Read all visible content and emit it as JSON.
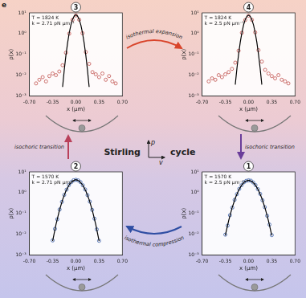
{
  "panel_label": "e",
  "center_label": "Stirling cycle",
  "axis_labels": {
    "y": "p",
    "x": "v"
  },
  "transitions": [
    {
      "label": "isothermal expansion",
      "color": "#d9452b"
    },
    {
      "label": "isochoric transition",
      "color": "#6a3d9a"
    },
    {
      "label": "isothermal compression",
      "color": "#2f4ea3"
    },
    {
      "label": "isochoric transition",
      "color": "#b9405a"
    }
  ],
  "chart_data": [
    {
      "type": "scatter",
      "title": "3",
      "annotations": [
        "T = 1824 K",
        "k = 2.71 pN µm⁻¹"
      ],
      "x_label": "x (µm)",
      "y_label": "ρ(x)",
      "log": "y",
      "grid": false,
      "xlim": [
        -0.7,
        0.7
      ],
      "xticks": [
        {
          "value": -0.7,
          "label": "-0.70"
        },
        {
          "value": -0.35,
          "label": "-0.35"
        },
        {
          "value": 0,
          "label": "0.00"
        },
        {
          "value": 0.35,
          "label": "0.35"
        },
        {
          "value": 0.7,
          "label": "0.70"
        }
      ],
      "ylim": [
        0.001,
        10
      ],
      "yticks": [
        {
          "value": 10,
          "label": "10¹"
        },
        {
          "value": 1,
          "label": "10⁰"
        },
        {
          "value": 0.1,
          "label": "10⁻¹"
        },
        {
          "value": 0.01,
          "label": "10⁻²"
        },
        {
          "value": 0.001,
          "label": "10⁻³"
        }
      ],
      "series": [
        {
          "type": "scatter",
          "color": "#c0504d",
          "marker": "open circle",
          "x": [
            -0.6,
            -0.55,
            -0.5,
            -0.45,
            -0.4,
            -0.35,
            -0.3,
            -0.25,
            -0.2,
            -0.15,
            -0.1,
            -0.05,
            0,
            0.05,
            0.1,
            0.15,
            0.2,
            0.25,
            0.3,
            0.35,
            0.4,
            0.45,
            0.5,
            0.55,
            0.6
          ],
          "values": [
            0.004,
            0.006,
            0.008,
            0.005,
            0.009,
            0.012,
            0.01,
            0.015,
            0.03,
            0.12,
            1.0,
            4.6,
            7.5,
            4.7,
            1.05,
            0.13,
            0.035,
            0.014,
            0.011,
            0.008,
            0.012,
            0.006,
            0.009,
            0.005,
            0.004
          ]
        },
        {
          "type": "line",
          "color": "#000000",
          "marker": "none",
          "line_style": "solid",
          "x": [
            -0.2,
            -0.175,
            -0.15,
            -0.125,
            -0.1,
            -0.075,
            -0.05,
            -0.025,
            0,
            0.025,
            0.05,
            0.075,
            0.1,
            0.125,
            0.15,
            0.175,
            0.2
          ],
          "values": [
            0.0027,
            0.0175,
            0.0888,
            0.35,
            1.08,
            2.59,
            4.84,
            7.04,
            7.98,
            7.04,
            4.84,
            2.59,
            1.08,
            0.35,
            0.0888,
            0.0175,
            0.0027
          ]
        }
      ]
    },
    {
      "type": "scatter",
      "title": "4",
      "annotations": [
        "T = 1824 K",
        "k = 2.5 pN µm⁻¹"
      ],
      "x_label": "x (µm)",
      "y_label": "ρ(x)",
      "log": "y",
      "grid": false,
      "xlim": [
        -0.7,
        0.7
      ],
      "xticks": [
        {
          "value": -0.7,
          "label": "-0.70"
        },
        {
          "value": -0.35,
          "label": "-0.35"
        },
        {
          "value": 0,
          "label": "0.00"
        },
        {
          "value": 0.35,
          "label": "0.35"
        },
        {
          "value": 0.7,
          "label": "0.70"
        }
      ],
      "ylim": [
        0.001,
        10
      ],
      "yticks": [
        {
          "value": 10,
          "label": "10¹"
        },
        {
          "value": 1,
          "label": "10⁰"
        },
        {
          "value": 0.1,
          "label": "10⁻¹"
        },
        {
          "value": 0.01,
          "label": "10⁻²"
        },
        {
          "value": 0.001,
          "label": "10⁻³"
        }
      ],
      "series": [
        {
          "type": "scatter",
          "color": "#c0504d",
          "marker": "open circle",
          "x": [
            -0.6,
            -0.55,
            -0.5,
            -0.45,
            -0.4,
            -0.35,
            -0.3,
            -0.25,
            -0.2,
            -0.15,
            -0.1,
            -0.05,
            0,
            0.05,
            0.1,
            0.15,
            0.2,
            0.25,
            0.3,
            0.35,
            0.4,
            0.45,
            0.5,
            0.55,
            0.6
          ],
          "values": [
            0.005,
            0.007,
            0.006,
            0.01,
            0.008,
            0.011,
            0.014,
            0.02,
            0.04,
            0.15,
            1.1,
            4.5,
            7.3,
            4.6,
            1.15,
            0.16,
            0.045,
            0.018,
            0.012,
            0.009,
            0.007,
            0.01,
            0.006,
            0.005,
            0.004
          ]
        },
        {
          "type": "line",
          "color": "#000000",
          "marker": "none",
          "line_style": "solid",
          "x": [
            -0.2,
            -0.175,
            -0.15,
            -0.125,
            -0.1,
            -0.075,
            -0.05,
            -0.025,
            0,
            0.025,
            0.05,
            0.075,
            0.1,
            0.125,
            0.15,
            0.175,
            0.2
          ],
          "values": [
            0.0035,
            0.021,
            0.101,
            0.38,
            1.12,
            2.6,
            4.75,
            6.8,
            7.7,
            6.8,
            4.75,
            2.6,
            1.12,
            0.38,
            0.101,
            0.021,
            0.0035
          ]
        }
      ]
    },
    {
      "type": "scatter",
      "title": "2",
      "annotations": [
        "T = 1570 K",
        "k = 2.71 pN µm⁻¹"
      ],
      "x_label": "x (µm)",
      "y_label": "ρ(x)",
      "log": "y",
      "grid": false,
      "xlim": [
        -0.7,
        0.7
      ],
      "xticks": [
        {
          "value": -0.7,
          "label": "-0.70"
        },
        {
          "value": -0.35,
          "label": "-0.35"
        },
        {
          "value": 0,
          "label": "0.00"
        },
        {
          "value": 0.35,
          "label": "0.35"
        },
        {
          "value": 0.7,
          "label": "0.70"
        }
      ],
      "ylim": [
        0.001,
        10
      ],
      "yticks": [
        {
          "value": 10,
          "label": "10¹"
        },
        {
          "value": 1,
          "label": "10⁰"
        },
        {
          "value": 0.1,
          "label": "10⁻¹"
        },
        {
          "value": 0.01,
          "label": "10⁻²"
        },
        {
          "value": 0.001,
          "label": "10⁻³"
        }
      ],
      "series": [
        {
          "type": "scatter",
          "color": "#3a5fa8",
          "marker": "open circle",
          "x": [
            -0.35,
            -0.315,
            -0.28,
            -0.245,
            -0.21,
            -0.175,
            -0.14,
            -0.105,
            -0.07,
            -0.035,
            0,
            0.035,
            0.07,
            0.105,
            0.14,
            0.175,
            0.21,
            0.245,
            0.28,
            0.315,
            0.35
          ],
          "values": [
            0.005,
            0.018,
            0.052,
            0.155,
            0.36,
            0.78,
            1.4,
            2.3,
            3.18,
            3.95,
            4.15,
            3.9,
            3.22,
            2.26,
            1.43,
            0.76,
            0.37,
            0.148,
            0.056,
            0.017,
            0.0048
          ]
        },
        {
          "type": "line",
          "color": "#000000",
          "marker": "none",
          "line_style": "solid",
          "x": [
            -0.35,
            -0.3,
            -0.25,
            -0.2,
            -0.15,
            -0.1,
            -0.05,
            0,
            0.05,
            0.1,
            0.15,
            0.2,
            0.25,
            0.3,
            0.35
          ],
          "values": [
            0.0047,
            0.0287,
            0.132,
            0.458,
            1.21,
            2.41,
            3.66,
            4.2,
            3.66,
            2.41,
            1.21,
            0.458,
            0.132,
            0.0287,
            0.0047
          ]
        }
      ]
    },
    {
      "type": "scatter",
      "title": "1",
      "annotations": [
        "T = 1570 K",
        "k = 2.5 pN µm⁻¹"
      ],
      "x_label": "x (µm)",
      "y_label": "ρ(x)",
      "log": "y",
      "grid": false,
      "xlim": [
        -0.7,
        0.7
      ],
      "xticks": [
        {
          "value": -0.7,
          "label": "-0.70"
        },
        {
          "value": -0.35,
          "label": "-0.35"
        },
        {
          "value": 0,
          "label": "0.00"
        },
        {
          "value": 0.35,
          "label": "0.35"
        },
        {
          "value": 0.7,
          "label": "0.70"
        }
      ],
      "ylim": [
        0.001,
        10
      ],
      "yticks": [
        {
          "value": 10,
          "label": "10¹"
        },
        {
          "value": 1,
          "label": "10⁰"
        },
        {
          "value": 0.1,
          "label": "10⁻¹"
        },
        {
          "value": 0.01,
          "label": "10⁻²"
        },
        {
          "value": 0.001,
          "label": "10⁻³"
        }
      ],
      "series": [
        {
          "type": "scatter",
          "color": "#3a5fa8",
          "marker": "open circle",
          "x": [
            -0.35,
            -0.315,
            -0.28,
            -0.245,
            -0.21,
            -0.175,
            -0.14,
            -0.105,
            -0.07,
            -0.035,
            0,
            0.035,
            0.07,
            0.105,
            0.14,
            0.175,
            0.21,
            0.245,
            0.28,
            0.315,
            0.35
          ],
          "values": [
            0.0095,
            0.026,
            0.082,
            0.19,
            0.45,
            0.85,
            1.52,
            2.28,
            3.15,
            3.72,
            3.95,
            3.78,
            3.1,
            2.32,
            1.48,
            0.87,
            0.43,
            0.2,
            0.077,
            0.029,
            0.009
          ]
        },
        {
          "type": "line",
          "color": "#000000",
          "marker": "none",
          "line_style": "solid",
          "x": [
            -0.35,
            -0.3,
            -0.25,
            -0.2,
            -0.15,
            -0.1,
            -0.05,
            0,
            0.05,
            0.1,
            0.15,
            0.2,
            0.25,
            0.3,
            0.35
          ],
          "values": [
            0.0087,
            0.0443,
            0.175,
            0.54,
            1.3,
            2.42,
            3.52,
            3.99,
            3.52,
            2.42,
            1.3,
            0.54,
            0.175,
            0.0443,
            0.0087
          ]
        }
      ]
    }
  ]
}
